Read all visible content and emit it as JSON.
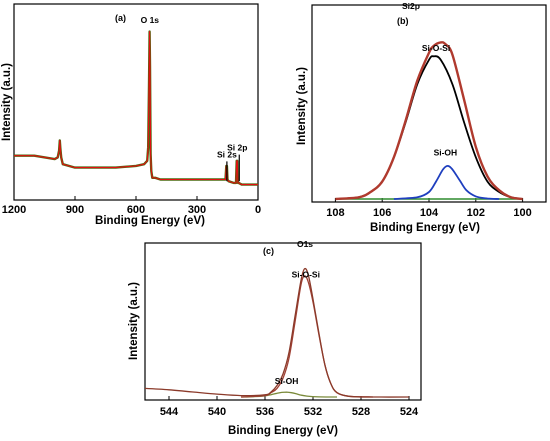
{
  "colors": {
    "frame": "#000000",
    "envelope": "#b03a2e",
    "survey_red": "#e01010",
    "survey_green": "#4a6a10",
    "bright_green": "#2e8b2e",
    "sio_si": "#000000",
    "si_oh": "#1f3fbf",
    "o_sio_si": "#a04034",
    "o_si_oh": "#7a8a3a",
    "o_env": "#8b3a2a"
  },
  "chart_data": [
    {
      "panel": "(a)",
      "type": "line",
      "xlabel": "Binding Energy (eV)",
      "ylabel": "Intensity (a.u.)",
      "xlim": [
        1200,
        0
      ],
      "xticks": [
        1200,
        900,
        600,
        300,
        0
      ],
      "ylim": [
        0,
        100
      ],
      "annotations": [
        {
          "text": "O 1s",
          "x": 532,
          "y": 97
        },
        {
          "text": "Si 2s",
          "x": 153,
          "y": 18
        },
        {
          "text": "Si 2p",
          "x": 102,
          "y": 22
        }
      ],
      "series": [
        {
          "role": "survey",
          "x": [
            1200,
            1100,
            1000,
            985,
            978,
            975,
            972,
            968,
            960,
            900,
            800,
            700,
            600,
            560,
            545,
            540,
            536,
            533,
            531,
            528,
            525,
            520,
            505,
            480,
            400,
            300,
            200,
            160,
            156,
            153,
            150,
            145,
            120,
            108,
            105,
            102,
            99,
            95,
            80,
            60,
            30,
            0
          ],
          "y": [
            19,
            19,
            17,
            18,
            22,
            28,
            23,
            18,
            14,
            12,
            12,
            12,
            13,
            14,
            16,
            24,
            60,
            92,
            72,
            20,
            10,
            6,
            6,
            5,
            5,
            5,
            5,
            5,
            13,
            13,
            5,
            4,
            3,
            3,
            16,
            16,
            3,
            3,
            2,
            2,
            2,
            2
          ]
        }
      ]
    },
    {
      "panel": "(b)",
      "type": "line",
      "title": "Si2p",
      "xlabel": "Binding Energy (eV)",
      "ylabel": "Intensity (a.u.)",
      "xlim": [
        109,
        99
      ],
      "xticks": [
        108,
        106,
        104,
        102,
        100
      ],
      "ylim": [
        0,
        100
      ],
      "annotations": [
        {
          "text": "Si-O-Si",
          "x": 103.7,
          "y": 85
        },
        {
          "text": "Si-OH",
          "x": 103.3,
          "y": 25
        }
      ],
      "series": [
        {
          "role": "Si-O-Si component",
          "x": [
            108.0,
            107.0,
            106.5,
            106.0,
            105.5,
            105.0,
            104.5,
            104.0,
            103.8,
            103.5,
            103.0,
            102.5,
            102.0,
            101.5,
            101.0,
            100.5,
            100.0
          ],
          "y": [
            0,
            1,
            4,
            10,
            24,
            44,
            66,
            80,
            82,
            80,
            66,
            44,
            24,
            10,
            4,
            1,
            0
          ]
        },
        {
          "role": "Si-OH component",
          "x": [
            105.5,
            104.5,
            104.0,
            103.7,
            103.4,
            103.2,
            103.0,
            102.7,
            102.4,
            102.0,
            101.5,
            101.0
          ],
          "y": [
            0,
            1,
            4,
            10,
            17,
            19,
            17,
            11,
            5,
            1.5,
            0.3,
            0
          ]
        },
        {
          "role": "envelope",
          "x": [
            108.0,
            107.0,
            106.5,
            106.0,
            105.5,
            105.0,
            104.5,
            104.0,
            103.8,
            103.5,
            103.3,
            103.0,
            102.5,
            102.0,
            101.5,
            101.0,
            100.5,
            100.0
          ],
          "y": [
            0,
            1,
            4,
            10,
            24,
            45,
            68,
            84,
            88,
            90,
            89,
            83,
            57,
            30,
            13,
            5,
            1,
            0
          ]
        }
      ]
    },
    {
      "panel": "(c)",
      "type": "line",
      "title": "O1s",
      "xlabel": "Binding Energy (eV)",
      "ylabel": "Intensity (a.u.)",
      "xlim": [
        546,
        523
      ],
      "xticks": [
        544,
        540,
        536,
        532,
        528,
        524
      ],
      "ylim": [
        0,
        100
      ],
      "annotations": [
        {
          "text": "Si-O-Si",
          "x": 532.6,
          "y": 83
        },
        {
          "text": "Si-OH",
          "x": 534.2,
          "y": 9
        }
      ],
      "series": [
        {
          "role": "Si-O-Si component",
          "x": [
            538,
            536,
            535.5,
            535,
            534.5,
            534,
            533.5,
            533.0,
            532.7,
            532.4,
            532.0,
            531.5,
            531.0,
            530.5,
            530.0,
            529,
            527
          ],
          "y": [
            0,
            1,
            3,
            6,
            13,
            27,
            52,
            78,
            84,
            80,
            66,
            43,
            22,
            9,
            3,
            0.5,
            0
          ]
        },
        {
          "role": "Si-OH component",
          "x": [
            538,
            537,
            536,
            535.5,
            535.0,
            534.6,
            534.2,
            533.8,
            533.4,
            533.0,
            532.5,
            531.5,
            530
          ],
          "y": [
            0,
            0.2,
            0.8,
            1.6,
            2.6,
            3.2,
            3.4,
            3.0,
            2.2,
            1.3,
            0.6,
            0.1,
            0
          ]
        },
        {
          "role": "envelope",
          "x": [
            546,
            544,
            542,
            540,
            538,
            536,
            535.5,
            535,
            534.5,
            534,
            533.5,
            533.0,
            532.7,
            532.4,
            532.0,
            531.5,
            531.0,
            530.5,
            530.0,
            529,
            527,
            524
          ],
          "y": [
            6,
            5,
            3.5,
            2,
            1,
            1.5,
            3.5,
            8,
            16,
            31,
            56,
            81,
            89,
            85,
            68,
            44,
            22,
            9,
            3,
            0.5,
            0,
            0
          ]
        }
      ]
    }
  ]
}
